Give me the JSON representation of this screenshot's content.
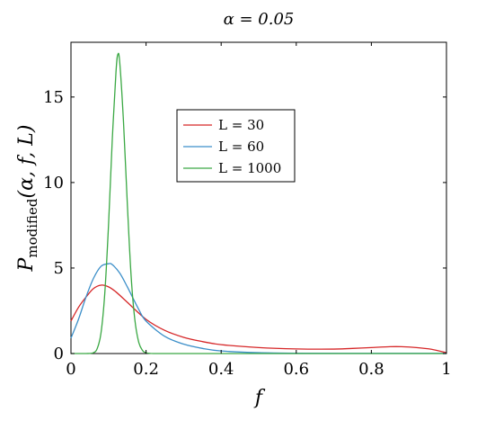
{
  "chart_data": {
    "type": "line",
    "title": "α = 0.05",
    "xlabel": "f",
    "ylabel": "P_modified(α, f, L)",
    "ylabel_parts": {
      "main": "P",
      "sub": "modified",
      "args": "(α, f, L)"
    },
    "xlim": [
      0,
      1
    ],
    "ylim": [
      0,
      18.2
    ],
    "xticks": [
      0,
      0.2,
      0.4,
      0.6,
      0.8,
      1
    ],
    "xtick_labels": [
      "0",
      "0.2",
      "0.4",
      "0.6",
      "0.8",
      "1"
    ],
    "yticks": [
      0,
      5,
      10,
      15
    ],
    "ytick_labels": [
      "0",
      "5",
      "10",
      "15"
    ],
    "grid": false,
    "legend_position": "upper-center",
    "series": [
      {
        "name": "L = 30",
        "legend_label": "L = 30",
        "color": "#d62728",
        "x": [
          0,
          0.02,
          0.04,
          0.06,
          0.08,
          0.1,
          0.12,
          0.15,
          0.2,
          0.25,
          0.3,
          0.35,
          0.4,
          0.5,
          0.6,
          0.7,
          0.75,
          0.8,
          0.85,
          0.88,
          0.92,
          0.96,
          1.0
        ],
        "y": [
          1.9,
          2.7,
          3.3,
          3.8,
          4.0,
          3.9,
          3.6,
          3.0,
          2.0,
          1.35,
          0.95,
          0.7,
          0.52,
          0.35,
          0.27,
          0.26,
          0.3,
          0.35,
          0.4,
          0.4,
          0.35,
          0.25,
          0.05
        ]
      },
      {
        "name": "L = 60",
        "legend_label": "L = 60",
        "color": "#3c8fc9",
        "x": [
          0,
          0.02,
          0.04,
          0.06,
          0.08,
          0.1,
          0.11,
          0.13,
          0.15,
          0.18,
          0.2,
          0.25,
          0.3,
          0.35,
          0.4,
          0.5,
          0.6,
          0.8,
          1.0
        ],
        "y": [
          0.9,
          2.0,
          3.3,
          4.4,
          5.1,
          5.25,
          5.2,
          4.7,
          3.9,
          2.6,
          1.9,
          1.0,
          0.55,
          0.3,
          0.15,
          0.05,
          0.02,
          0.01,
          0.01
        ]
      },
      {
        "name": "L = 1000",
        "legend_label": "L = 1000",
        "color": "#3aa843",
        "x": [
          0,
          0.04,
          0.06,
          0.07,
          0.08,
          0.09,
          0.1,
          0.11,
          0.12,
          0.125,
          0.13,
          0.14,
          0.15,
          0.16,
          0.17,
          0.18,
          0.19,
          0.2,
          0.22,
          0.3,
          1.0
        ],
        "y": [
          0,
          0,
          0.05,
          0.3,
          1.2,
          3.5,
          7.5,
          12.5,
          16.5,
          17.5,
          17.0,
          13.5,
          8.8,
          4.6,
          2.0,
          0.7,
          0.2,
          0.05,
          0,
          0,
          0
        ]
      }
    ]
  }
}
